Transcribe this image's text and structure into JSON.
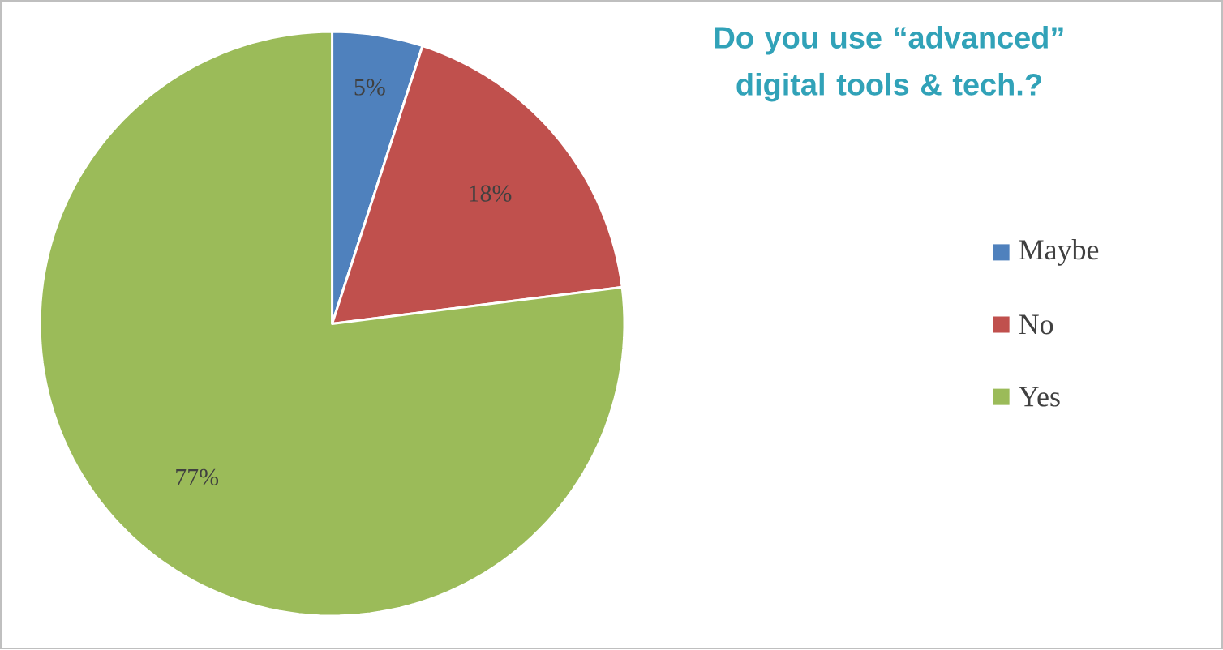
{
  "chart_data": {
    "type": "pie",
    "title": "Do you use “advanced” digital tools & tech.?",
    "categories": [
      "Maybe",
      "No",
      "Yes"
    ],
    "values": [
      5,
      18,
      77
    ],
    "colors": [
      "#4f81bd",
      "#c0504d",
      "#9bbb59"
    ],
    "value_labels": [
      "5%",
      "18%",
      "77%"
    ],
    "legend": "right"
  }
}
